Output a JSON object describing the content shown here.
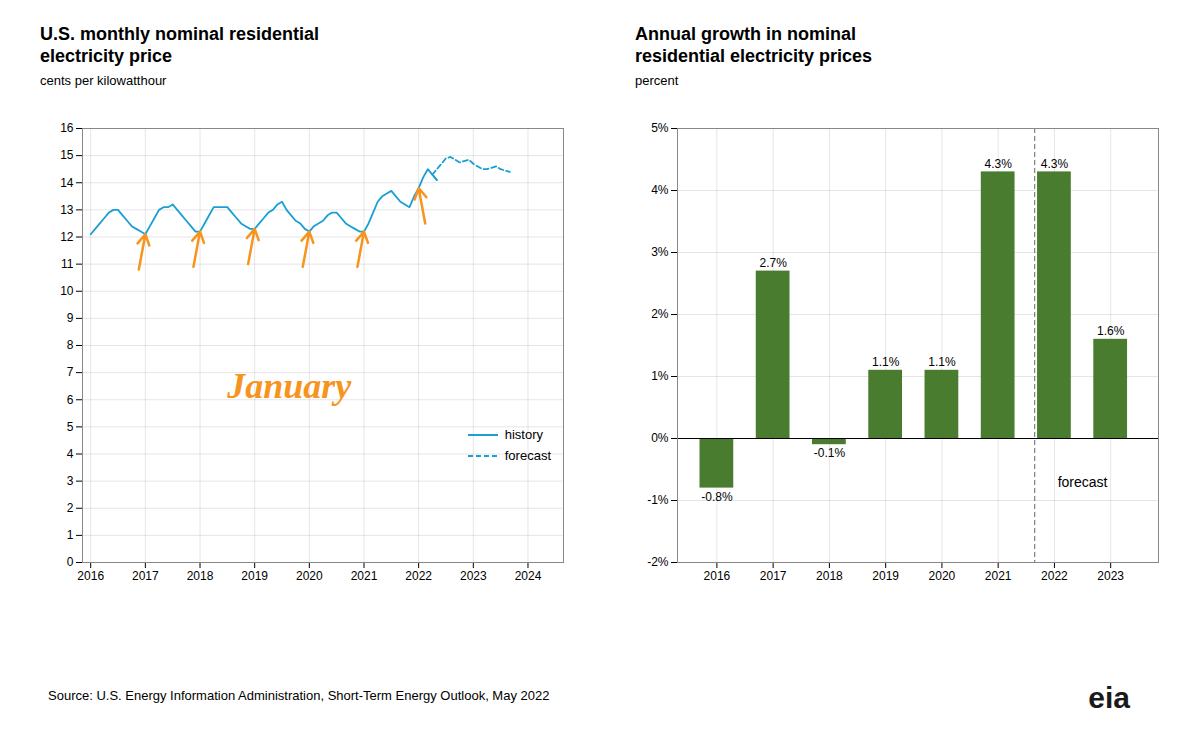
{
  "chart_data": [
    {
      "type": "line",
      "title": "U.S. monthly nominal residential\nelectricity price",
      "subtitle": "cents per kilowatthour",
      "series": [
        {
          "name": "history",
          "color": "#1a9fd4",
          "line_style": "solid",
          "x": [
            2016.0,
            2016.083,
            2016.167,
            2016.25,
            2016.333,
            2016.417,
            2016.5,
            2016.583,
            2016.667,
            2016.75,
            2016.833,
            2016.917,
            2017.0,
            2017.083,
            2017.167,
            2017.25,
            2017.333,
            2017.417,
            2017.5,
            2017.583,
            2017.667,
            2017.75,
            2017.833,
            2017.917,
            2018.0,
            2018.083,
            2018.167,
            2018.25,
            2018.333,
            2018.417,
            2018.5,
            2018.583,
            2018.667,
            2018.75,
            2018.833,
            2018.917,
            2019.0,
            2019.083,
            2019.167,
            2019.25,
            2019.333,
            2019.417,
            2019.5,
            2019.583,
            2019.667,
            2019.75,
            2019.833,
            2019.917,
            2020.0,
            2020.083,
            2020.167,
            2020.25,
            2020.333,
            2020.417,
            2020.5,
            2020.583,
            2020.667,
            2020.75,
            2020.833,
            2020.917,
            2021.0,
            2021.083,
            2021.167,
            2021.25,
            2021.333,
            2021.417,
            2021.5,
            2021.583,
            2021.667,
            2021.75,
            2021.833,
            2021.917,
            2022.0,
            2022.083,
            2022.167,
            2022.25,
            2022.333
          ],
          "values": [
            12.1,
            12.3,
            12.5,
            12.7,
            12.9,
            13.0,
            13.0,
            12.8,
            12.6,
            12.4,
            12.3,
            12.2,
            12.1,
            12.4,
            12.7,
            13.0,
            13.1,
            13.1,
            13.2,
            13.0,
            12.8,
            12.6,
            12.4,
            12.2,
            12.2,
            12.5,
            12.8,
            13.1,
            13.1,
            13.1,
            13.1,
            12.9,
            12.7,
            12.5,
            12.4,
            12.3,
            12.3,
            12.5,
            12.7,
            12.9,
            13.0,
            13.2,
            13.3,
            13.0,
            12.8,
            12.6,
            12.5,
            12.3,
            12.2,
            12.4,
            12.5,
            12.6,
            12.8,
            12.9,
            12.9,
            12.7,
            12.5,
            12.4,
            12.3,
            12.2,
            12.2,
            12.5,
            12.9,
            13.3,
            13.5,
            13.6,
            13.7,
            13.5,
            13.3,
            13.2,
            13.1,
            13.5,
            13.8,
            14.2,
            14.5,
            14.3,
            14.1
          ]
        },
        {
          "name": "forecast",
          "color": "#1a9fd4",
          "line_style": "dashed",
          "x": [
            2022.25,
            2022.333,
            2022.417,
            2022.5,
            2022.583,
            2022.667,
            2022.75,
            2022.833,
            2022.917,
            2023.0,
            2023.083,
            2023.167,
            2023.25,
            2023.333,
            2023.417,
            2023.5,
            2023.583,
            2023.667
          ],
          "values": [
            14.3,
            14.5,
            14.7,
            14.9,
            14.95,
            14.85,
            14.75,
            14.8,
            14.85,
            14.7,
            14.6,
            14.5,
            14.5,
            14.55,
            14.6,
            14.5,
            14.45,
            14.4
          ]
        }
      ],
      "xlim": [
        2015.85,
        2024.65
      ],
      "xticks": [
        2016,
        2017,
        2018,
        2019,
        2020,
        2021,
        2022,
        2023,
        2024
      ],
      "ylim": [
        0,
        16
      ],
      "yticks": [
        0,
        1,
        2,
        3,
        4,
        5,
        6,
        7,
        8,
        9,
        10,
        11,
        12,
        13,
        14,
        15,
        16
      ],
      "grid": true,
      "legend": "lower right",
      "annotations": [
        {
          "text": "January",
          "color": "#f7941d",
          "arrows": [
            {
              "x": 2017.0,
              "y": 12.1,
              "dx": -0.12,
              "dy": -1.3
            },
            {
              "x": 2018.0,
              "y": 12.2,
              "dx": -0.12,
              "dy": -1.3
            },
            {
              "x": 2019.0,
              "y": 12.3,
              "dx": -0.12,
              "dy": -1.3
            },
            {
              "x": 2020.0,
              "y": 12.2,
              "dx": -0.12,
              "dy": -1.3
            },
            {
              "x": 2021.0,
              "y": 12.2,
              "dx": -0.12,
              "dy": -1.3
            },
            {
              "x": 2022.0,
              "y": 13.8,
              "dx": 0.12,
              "dy": -1.3
            }
          ]
        }
      ]
    },
    {
      "type": "bar",
      "title": "Annual growth in nominal\nresidential electricity prices",
      "subtitle": "percent",
      "x": [
        2016,
        2017,
        2018,
        2019,
        2020,
        2021,
        2022,
        2023
      ],
      "values": [
        -0.8,
        2.7,
        -0.1,
        1.1,
        1.1,
        4.3,
        4.3,
        1.6
      ],
      "value_labels": [
        "-0.8%",
        "2.7%",
        "-0.1%",
        "1.1%",
        "1.1%",
        "4.3%",
        "4.3%",
        "1.6%"
      ],
      "data_labels": true,
      "color": "#4a7c2f",
      "xlim": [
        2015.3,
        2023.85
      ],
      "xticks": [
        2016,
        2017,
        2018,
        2019,
        2020,
        2021,
        2022,
        2023
      ],
      "ylim": [
        -2,
        5
      ],
      "yticks": [
        {
          "value": -2,
          "label": "-2%"
        },
        {
          "value": -1,
          "label": "-1%"
        },
        {
          "value": 0,
          "label": "0%"
        },
        {
          "value": 1,
          "label": "1%"
        },
        {
          "value": 2,
          "label": "2%"
        },
        {
          "value": 3,
          "label": "3%"
        },
        {
          "value": 4,
          "label": "4%"
        },
        {
          "value": 5,
          "label": "5%"
        }
      ],
      "grid": true,
      "rules": [
        {
          "y": 0,
          "color": "black"
        },
        {
          "x": 2021.65,
          "color": "#666666",
          "line_style": "dashed"
        }
      ],
      "annotations": [
        {
          "text": "forecast",
          "x": 2022.5,
          "y": -0.62
        }
      ]
    }
  ],
  "source": "Source: U.S. Energy Information Administration, Short-Term Energy Outlook, May 2022",
  "logo": "eia"
}
